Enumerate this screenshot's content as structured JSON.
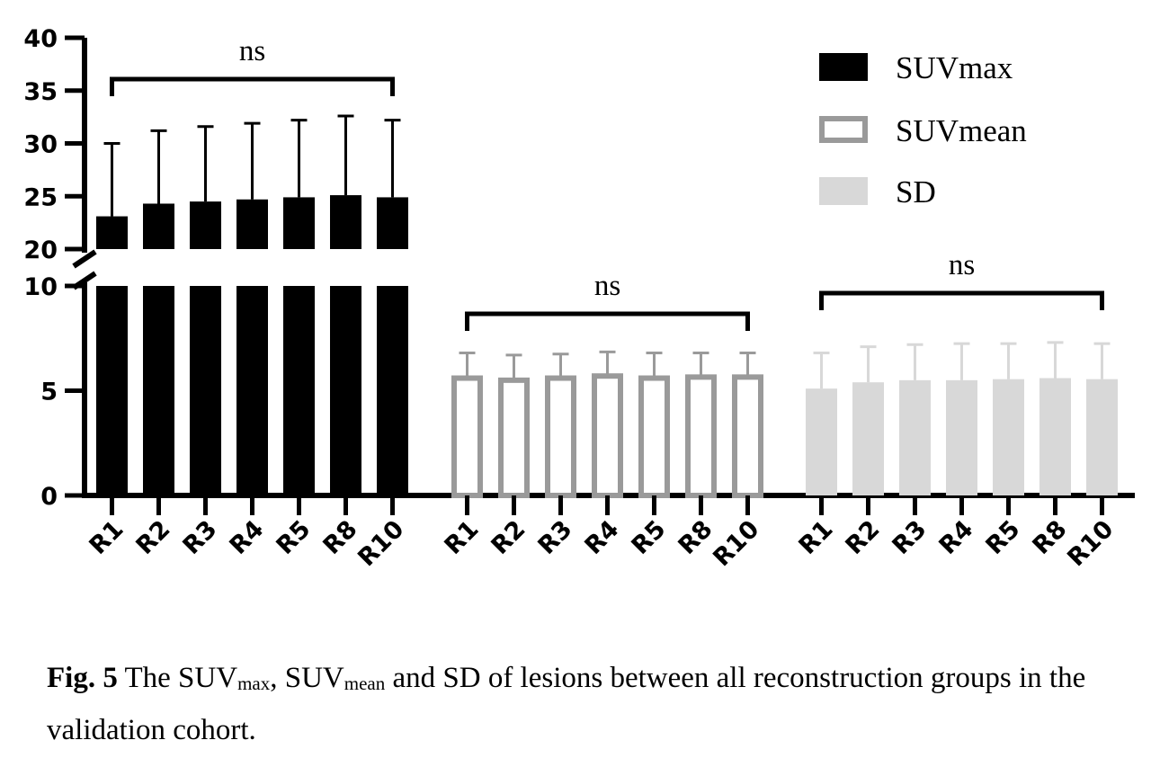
{
  "chart_data": {
    "type": "bar",
    "groups": [
      "SUVmax",
      "SUVmean",
      "SD"
    ],
    "categories": [
      "R1",
      "R2",
      "R3",
      "R4",
      "R5",
      "R8",
      "R10"
    ],
    "series": [
      {
        "name": "SUVmax",
        "values": [
          23.1,
          24.3,
          24.5,
          24.7,
          24.9,
          25.1,
          24.9
        ],
        "errors": [
          6.9,
          6.9,
          7.1,
          7.2,
          7.3,
          7.5,
          7.3
        ],
        "color": "#000000",
        "style": "filled"
      },
      {
        "name": "SUVmean",
        "values": [
          5.6,
          5.5,
          5.6,
          5.7,
          5.6,
          5.65,
          5.65
        ],
        "errors": [
          1.2,
          1.2,
          1.15,
          1.15,
          1.2,
          1.15,
          1.15
        ],
        "color": "#9a9a9a",
        "style": "outline"
      },
      {
        "name": "SD",
        "values": [
          5.1,
          5.4,
          5.5,
          5.5,
          5.55,
          5.6,
          5.55
        ],
        "errors": [
          1.7,
          1.7,
          1.7,
          1.75,
          1.7,
          1.7,
          1.7
        ],
        "color": "#d8d8d8",
        "style": "filled"
      }
    ],
    "y_axis": {
      "broken": true,
      "lower_segment": [
        0,
        10
      ],
      "upper_segment": [
        20,
        40
      ],
      "lower_ticks": [
        "0",
        "5",
        "10"
      ],
      "upper_ticks": [
        "20",
        "25",
        "30",
        "35",
        "40"
      ]
    },
    "significance": [
      "ns",
      "ns",
      "ns"
    ],
    "legend": {
      "placement": "top-right",
      "entries": [
        "SUVmax",
        "SUVmean",
        "SD"
      ]
    }
  },
  "caption": {
    "label": "Fig. 5",
    "text_before": " The SUV",
    "sub1": "max",
    "text_mid1": ", SUV",
    "sub2": "mean",
    "text_after": " and SD of lesions between all reconstruction groups in the validation cohort."
  }
}
